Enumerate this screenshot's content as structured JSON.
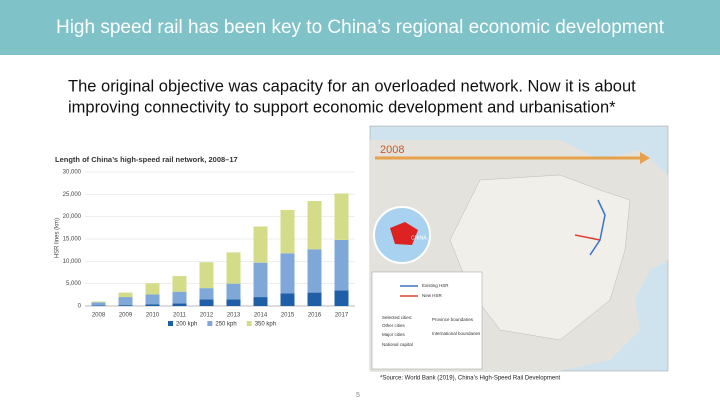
{
  "header": {
    "title": "High speed rail has been key to China’s regional economic development"
  },
  "subtitle": [
    "The original objective was capacity for an overloaded network.  Now it is about",
    "improving connectivity to support economic development and urbanisation*"
  ],
  "chart_data": {
    "type": "bar",
    "stacked": true,
    "title": "Length of China’s high-speed rail network, 2008–17",
    "y_label": "HSR lines (km)",
    "categories": [
      "2008",
      "2009",
      "2010",
      "2011",
      "2012",
      "2013",
      "2014",
      "2015",
      "2016",
      "2017"
    ],
    "series": [
      {
        "name": "200 kph",
        "color": "#1f5fa8",
        "values": [
          100,
          200,
          400,
          600,
          1500,
          1500,
          2000,
          2800,
          3000,
          3500
        ]
      },
      {
        "name": "250 kph",
        "color": "#7fa7d8",
        "values": [
          700,
          1800,
          2200,
          2600,
          2500,
          3500,
          7700,
          9000,
          9700,
          11300
        ]
      },
      {
        "name": "350 kph",
        "color": "#d4dc8a",
        "values": [
          200,
          1000,
          2500,
          3500,
          5800,
          7000,
          8100,
          9700,
          10800,
          10400
        ]
      }
    ],
    "ylim": [
      0,
      30000
    ],
    "yticks": [
      0,
      {
        "value": 5000,
        "label": "5,000"
      },
      {
        "value": 10000,
        "label": "10,000"
      },
      {
        "value": 15000,
        "label": "15,000"
      },
      {
        "value": 20000,
        "label": "20,000"
      },
      {
        "value": 25000,
        "label": "25,000"
      },
      {
        "value": 30000,
        "label": "30,000"
      }
    ],
    "grid": true,
    "legend": "bottom"
  },
  "map": {
    "year": "2008",
    "country": "CHINA",
    "legend": [
      "Existing HSR",
      "New HSR"
    ],
    "cities_title": "Selected cities:",
    "cities": [
      "Other cities",
      "Major cities",
      "National capital"
    ],
    "boundaries": [
      "Province boundaries",
      "International boundaries"
    ]
  },
  "source": "*Source: World Bank (2019), China’s High-Speed Rail Development",
  "page_number": "5"
}
